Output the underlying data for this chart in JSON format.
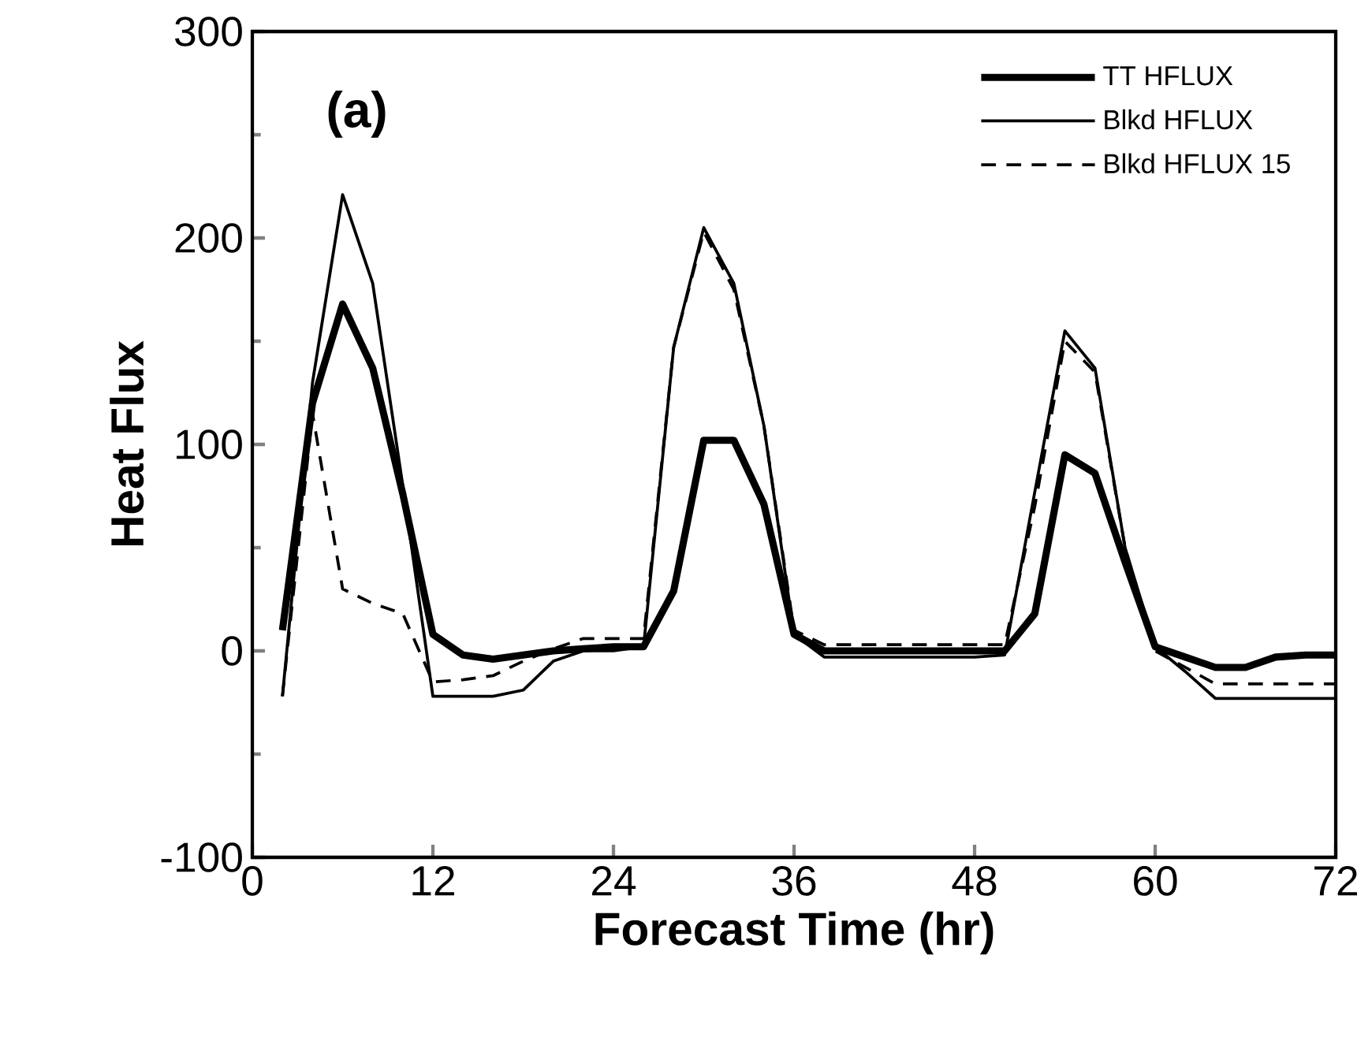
{
  "chart_data": {
    "type": "line",
    "xlabel": "Forecast Time (hr)",
    "ylabel": "Heat Flux",
    "annotations": [
      "(a)"
    ],
    "x": [
      2,
      4,
      6,
      8,
      10,
      12,
      14,
      16,
      18,
      20,
      22,
      24,
      26,
      28,
      30,
      32,
      34,
      36,
      38,
      40,
      42,
      44,
      46,
      48,
      50,
      52,
      54,
      56,
      58,
      60,
      62,
      64,
      66,
      68,
      70,
      72
    ],
    "series": [
      {
        "name": "TT HFLUX",
        "color": "#000000",
        "line_style": "solid",
        "values": [
          10,
          120,
          168,
          137,
          76,
          8,
          -2,
          -4,
          -2,
          0,
          1,
          2,
          2,
          29,
          102,
          102,
          71,
          8,
          0,
          0,
          0,
          0,
          0,
          0,
          0,
          18,
          95,
          86,
          43,
          2,
          -3,
          -8,
          -8,
          -3,
          -2,
          -2
        ]
      },
      {
        "name": "Blkd HFLUX",
        "color": "#000000",
        "line_style": "solid",
        "values": [
          -22,
          130,
          221,
          178,
          80,
          -22,
          -22,
          -22,
          -19,
          -5,
          0,
          0,
          2,
          147,
          205,
          178,
          109,
          8,
          -3,
          -3,
          -3,
          -3,
          -3,
          -3,
          -2,
          77,
          155,
          137,
          50,
          2,
          -10,
          -23,
          -23,
          -23,
          -23,
          -23
        ]
      },
      {
        "name": "Blkd HFLUX 15",
        "color": "#000000",
        "line_style": "dashed",
        "values": [
          -22,
          115,
          30,
          23,
          18,
          -15,
          -14,
          -12,
          -5,
          1,
          6,
          6,
          6,
          147,
          203,
          175,
          109,
          10,
          3,
          3,
          3,
          3,
          3,
          3,
          3,
          70,
          150,
          135,
          50,
          0,
          -8,
          -16,
          -16,
          -16,
          -16,
          -16
        ]
      }
    ],
    "xlim": [
      0,
      72
    ],
    "xticks": [
      0,
      12,
      24,
      36,
      48,
      60,
      72
    ],
    "ylim": [
      -100,
      300
    ],
    "yticks": [
      -100,
      0,
      100,
      200,
      300
    ],
    "grid": false,
    "legend": "top right",
    "marker": "none"
  }
}
